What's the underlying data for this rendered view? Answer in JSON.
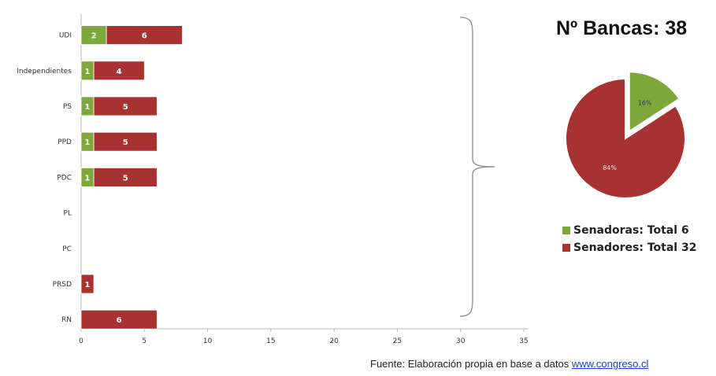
{
  "chart_data": [
    {
      "type": "bar",
      "orientation": "horizontal",
      "stacked": true,
      "categories": [
        "UDI",
        "Independientes",
        "PS",
        "PPD",
        "PDC",
        "PL",
        "PC",
        "PRSD",
        "RN"
      ],
      "series": [
        {
          "values": [
            2,
            1,
            1,
            1,
            1,
            0,
            0,
            0,
            0
          ],
          "color": "#7ea83c"
        },
        {
          "values": [
            6,
            4,
            5,
            5,
            5,
            0,
            0,
            1,
            6
          ],
          "color": "#a83232"
        }
      ],
      "xlim": [
        0,
        35
      ],
      "xticks": [
        0,
        5,
        10,
        15,
        20,
        25,
        30,
        35
      ],
      "title": "",
      "xlabel": "",
      "ylabel": "",
      "grid": false,
      "bracket": true
    },
    {
      "type": "pie",
      "title": "Nº Bancas: 38",
      "slices": [
        {
          "label": "Senadoras: Total 6",
          "value": 6,
          "pct_label": "16%",
          "color": "#7ea83c",
          "exploded": true
        },
        {
          "label": "Senadores: Total 32",
          "value": 32,
          "pct_label": "84%",
          "color": "#a83232",
          "exploded": false
        }
      ],
      "legend_position": "bottom"
    }
  ],
  "source": {
    "text": "Fuente: Elaboración propia en base a datos ",
    "link": "www.congreso.cl"
  }
}
